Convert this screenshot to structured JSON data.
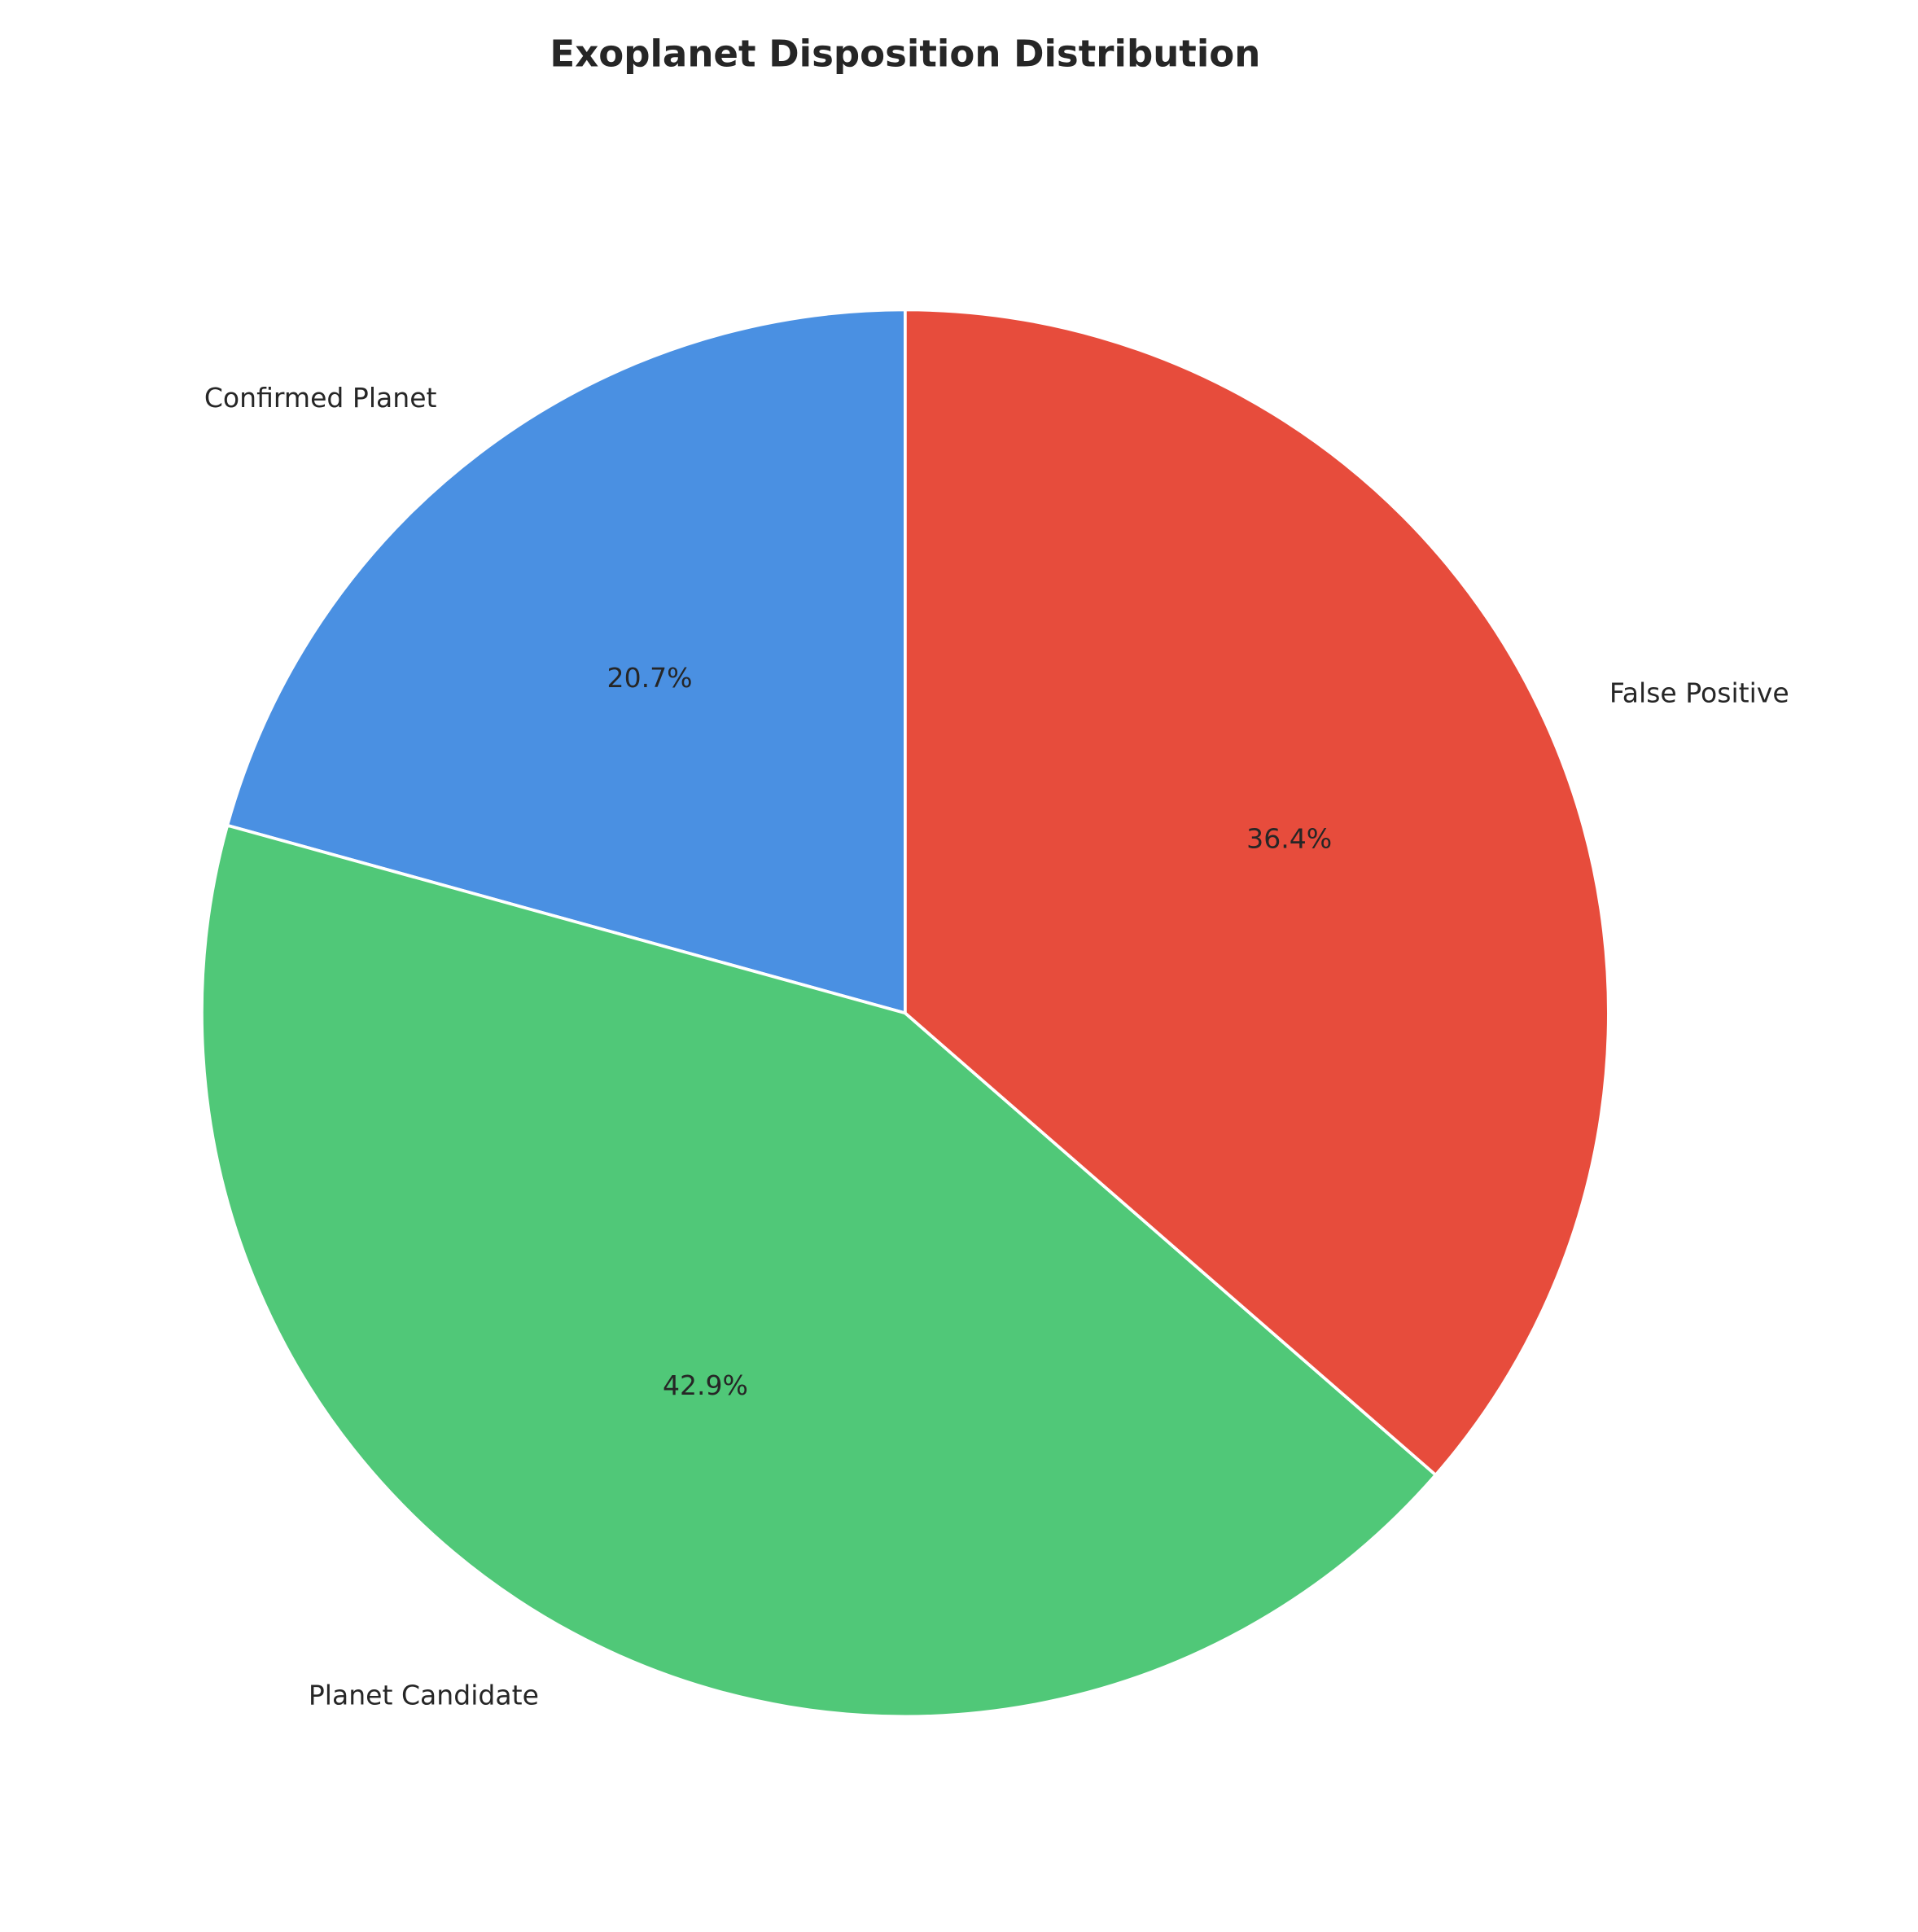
{
  "chart_data": {
    "type": "pie",
    "title": "Exoplanet Disposition Distribution",
    "start_angle_deg": 90,
    "direction": "counterclockwise",
    "slices": [
      {
        "label": "Confirmed Planet",
        "value": 20.7,
        "pct_label": "20.7%",
        "color": "#4a90e2"
      },
      {
        "label": "Planet Candidate",
        "value": 42.9,
        "pct_label": "42.9%",
        "color": "#50c878"
      },
      {
        "label": "False Positive",
        "value": 36.4,
        "pct_label": "36.4%",
        "color": "#e74c3c"
      }
    ]
  }
}
